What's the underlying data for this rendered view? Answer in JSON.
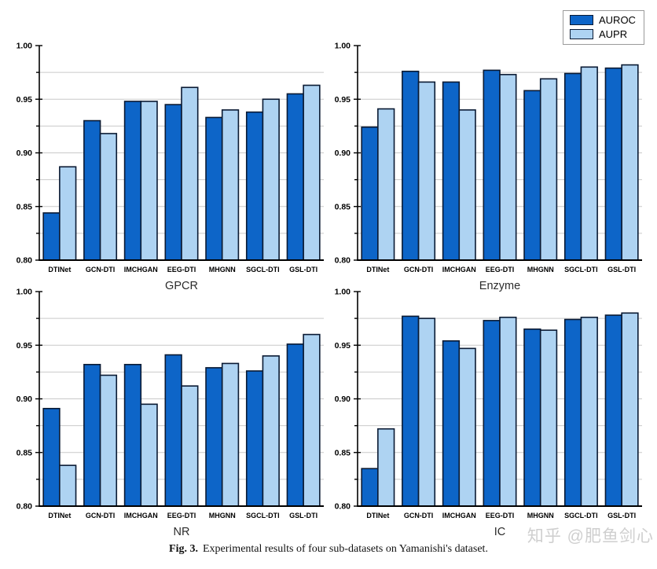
{
  "legend": {
    "position": "upper right",
    "items": [
      {
        "label": "AUROC",
        "color": "#0d65c8"
      },
      {
        "label": "AUPR",
        "color": "#aed3f2"
      }
    ]
  },
  "caption": {
    "prefix": "Fig. 3.",
    "text": "Experimental results of four sub-datasets on Yamanishi's dataset."
  },
  "watermark": "知乎 @肥鱼剑心",
  "colors": {
    "auroc": "#0d65c8",
    "aupr": "#aed3f2",
    "bar_stroke": "#0a1a33",
    "grid": "#c9c9c9",
    "axis": "#000000",
    "title": "#2b2b2b"
  },
  "chart_data": [
    {
      "type": "bar",
      "title": "GPCR",
      "xlabel": "",
      "ylabel": "",
      "categories": [
        "DTINet",
        "GCN-DTI",
        "IMCHGAN",
        "EEG-DTI",
        "MHGNN",
        "SGCL-DTI",
        "GSL-DTI"
      ],
      "series": [
        {
          "name": "AUROC",
          "values": [
            0.844,
            0.93,
            0.948,
            0.945,
            0.933,
            0.938,
            0.955
          ]
        },
        {
          "name": "AUPR",
          "values": [
            0.887,
            0.918,
            0.948,
            0.961,
            0.94,
            0.95,
            0.963
          ]
        }
      ],
      "ylim": [
        0.8,
        1.0
      ],
      "yticks": [
        0.8,
        0.85,
        0.9,
        0.95,
        1.0
      ],
      "grid_step": 0.025,
      "grid": true
    },
    {
      "type": "bar",
      "title": "Enzyme",
      "xlabel": "",
      "ylabel": "",
      "categories": [
        "DTINet",
        "GCN-DTI",
        "IMCHGAN",
        "EEG-DTI",
        "MHGNN",
        "SGCL-DTI",
        "GSL-DTI"
      ],
      "series": [
        {
          "name": "AUROC",
          "values": [
            0.924,
            0.976,
            0.966,
            0.977,
            0.958,
            0.974,
            0.979
          ]
        },
        {
          "name": "AUPR",
          "values": [
            0.941,
            0.966,
            0.94,
            0.973,
            0.969,
            0.98,
            0.982
          ]
        }
      ],
      "ylim": [
        0.8,
        1.0
      ],
      "yticks": [
        0.8,
        0.85,
        0.9,
        0.95,
        1.0
      ],
      "grid_step": 0.025,
      "grid": true
    },
    {
      "type": "bar",
      "title": "NR",
      "xlabel": "",
      "ylabel": "",
      "categories": [
        "DTINet",
        "GCN-DTI",
        "IMCHGAN",
        "EEG-DTI",
        "MHGNN",
        "SGCL-DTI",
        "GSL-DTI"
      ],
      "series": [
        {
          "name": "AUROC",
          "values": [
            0.891,
            0.932,
            0.932,
            0.941,
            0.929,
            0.926,
            0.951
          ]
        },
        {
          "name": "AUPR",
          "values": [
            0.838,
            0.922,
            0.895,
            0.912,
            0.933,
            0.94,
            0.96
          ]
        }
      ],
      "ylim": [
        0.8,
        1.0
      ],
      "yticks": [
        0.8,
        0.85,
        0.9,
        0.95,
        1.0
      ],
      "grid_step": 0.025,
      "grid": true
    },
    {
      "type": "bar",
      "title": "IC",
      "xlabel": "",
      "ylabel": "",
      "categories": [
        "DTINet",
        "GCN-DTI",
        "IMCHGAN",
        "EEG-DTI",
        "MHGNN",
        "SGCL-DTI",
        "GSL-DTI"
      ],
      "series": [
        {
          "name": "AUROC",
          "values": [
            0.835,
            0.977,
            0.954,
            0.973,
            0.965,
            0.974,
            0.978
          ]
        },
        {
          "name": "AUPR",
          "values": [
            0.872,
            0.975,
            0.947,
            0.976,
            0.964,
            0.976,
            0.98
          ]
        }
      ],
      "ylim": [
        0.8,
        1.0
      ],
      "yticks": [
        0.8,
        0.85,
        0.9,
        0.95,
        1.0
      ],
      "grid_step": 0.025,
      "grid": true
    }
  ]
}
